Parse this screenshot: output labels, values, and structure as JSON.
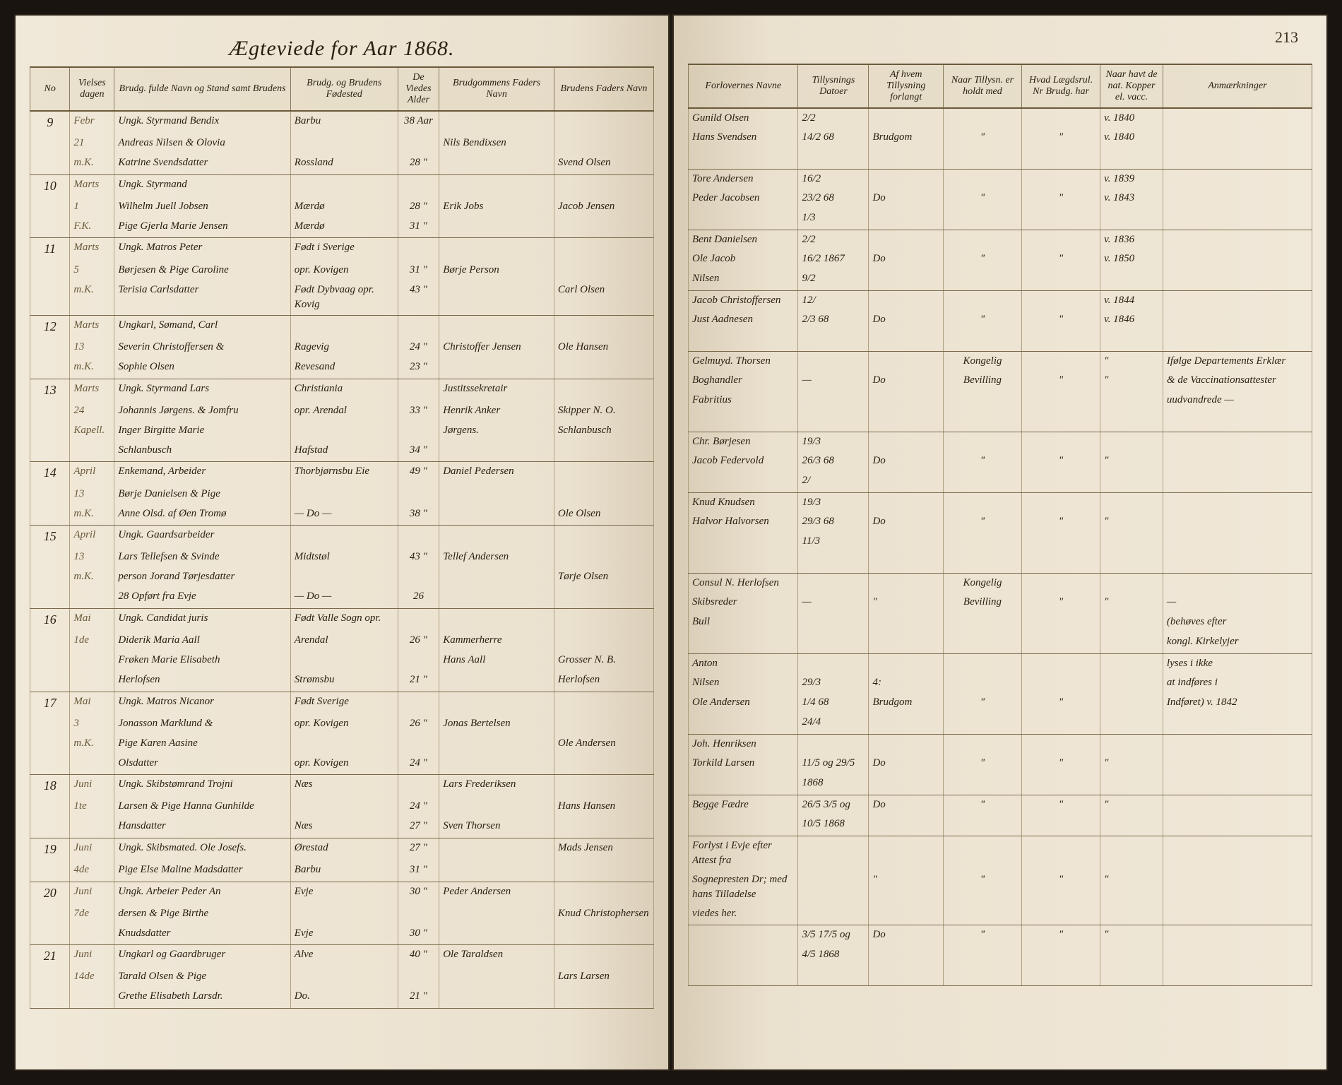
{
  "pageNumber": "213",
  "title": "Ægteviede for Aar 1868.",
  "headersLeft": [
    "No",
    "Vielses dagen",
    "Brudg. fulde Navn og Stand samt Brudens",
    "Brudg. og Brudens Fødested",
    "De Viedes Alder",
    "Brudgommens Faders Navn",
    "Brudens Faders Navn"
  ],
  "headersRight": [
    "Forlovernes Navne",
    "Tillysnings Datoer",
    "Af hvem Tillysning forlangt",
    "Naar Tillysn. er holdt med",
    "Hvad Lægdsrul. Nr Brudg. har",
    "Naar havt de nat. Kopper el. vacc.",
    "Anmærkninger"
  ],
  "entries": [
    {
      "no": "9",
      "month": "Febr",
      "day": "21",
      "sub": "m.K.",
      "lines": [
        {
          "names": "Ungk. Styrmand Bendix",
          "place": "Barbu",
          "age": "38 Aar",
          "f1": "",
          "f2": "",
          "wit": "Gunild Olsen",
          "d2": "2/2",
          "by": "",
          "n1": "",
          "n2": "",
          "yr": "v. 1840",
          "rem": ""
        },
        {
          "names": "Andreas Nilsen & Olovia",
          "place": "",
          "age": "",
          "f1": "Nils Bendixsen",
          "f2": "",
          "wit": "Hans Svendsen",
          "d2": "14/2 68",
          "by": "Brudgom",
          "n1": "\"",
          "n2": "\"",
          "yr": "v. 1840",
          "rem": ""
        },
        {
          "names": "Katrine Svendsdatter",
          "place": "Rossland",
          "age": "28 \"",
          "f1": "",
          "f2": "Svend Olsen",
          "wit": "",
          "d2": "",
          "by": "",
          "n1": "",
          "n2": "",
          "yr": "",
          "rem": ""
        }
      ]
    },
    {
      "no": "10",
      "month": "Marts",
      "day": "1",
      "sub": "F.K.",
      "lines": [
        {
          "names": "Ungk. Styrmand",
          "place": "",
          "age": "",
          "f1": "",
          "f2": "",
          "wit": "Tore Andersen",
          "d2": "16/2",
          "by": "",
          "n1": "",
          "n2": "",
          "yr": "v. 1839",
          "rem": ""
        },
        {
          "names": "Wilhelm Juell Jobsen",
          "place": "Mærdø",
          "age": "28 \"",
          "f1": "Erik Jobs",
          "f2": "Jacob Jensen",
          "wit": "Peder Jacobsen",
          "d2": "23/2 68",
          "by": "Do",
          "n1": "\"",
          "n2": "\"",
          "yr": "v. 1843",
          "rem": ""
        },
        {
          "names": "Pige Gjerla Marie Jensen",
          "place": "Mærdø",
          "age": "31 \"",
          "f1": "",
          "f2": "",
          "wit": "",
          "d2": "1/3",
          "by": "",
          "n1": "",
          "n2": "",
          "yr": "",
          "rem": ""
        }
      ]
    },
    {
      "no": "11",
      "month": "Marts",
      "day": "5",
      "sub": "m.K.",
      "lines": [
        {
          "names": "Ungk. Matros Peter",
          "place": "Født i Sverige",
          "age": "",
          "f1": "",
          "f2": "",
          "wit": "Bent Danielsen",
          "d2": "2/2",
          "by": "",
          "n1": "",
          "n2": "",
          "yr": "v. 1836",
          "rem": ""
        },
        {
          "names": "Børjesen & Pige Caroline",
          "place": "opr. Kovigen",
          "age": "31 \"",
          "f1": "Børje Person",
          "f2": "",
          "wit": "Ole Jacob",
          "d2": "16/2 1867",
          "by": "Do",
          "n1": "\"",
          "n2": "\"",
          "yr": "v. 1850",
          "rem": ""
        },
        {
          "names": "Terisia Carlsdatter",
          "place": "Født Dybvaag opr. Kovig",
          "age": "43 \"",
          "f1": "",
          "f2": "Carl Olsen",
          "wit": "Nilsen",
          "d2": "9/2",
          "by": "",
          "n1": "",
          "n2": "",
          "yr": "",
          "rem": ""
        }
      ]
    },
    {
      "no": "12",
      "month": "Marts",
      "day": "13",
      "sub": "m.K.",
      "lines": [
        {
          "names": "Ungkarl, Sømand, Carl",
          "place": "",
          "age": "",
          "f1": "",
          "f2": "",
          "wit": "Jacob Christoffersen",
          "d2": "12/",
          "by": "",
          "n1": "",
          "n2": "",
          "yr": "v. 1844",
          "rem": ""
        },
        {
          "names": "Severin Christoffersen &",
          "place": "Ragevig",
          "age": "24 \"",
          "f1": "Christoffer Jensen",
          "f2": "Ole Hansen",
          "wit": "Just Aadnesen",
          "d2": "2/3 68",
          "by": "Do",
          "n1": "\"",
          "n2": "\"",
          "yr": "v. 1846",
          "rem": ""
        },
        {
          "names": "Sophie Olsen",
          "place": "Revesand",
          "age": "23 \"",
          "f1": "",
          "f2": "",
          "wit": "",
          "d2": "",
          "by": "",
          "n1": "",
          "n2": "",
          "yr": "",
          "rem": ""
        }
      ]
    },
    {
      "no": "13",
      "month": "Marts",
      "day": "24",
      "sub": "Kapell.",
      "lines": [
        {
          "names": "Ungk. Styrmand Lars",
          "place": "Christiania",
          "age": "",
          "f1": "Justitssekretair",
          "f2": "",
          "wit": "Gelmuyd. Thorsen",
          "d2": "",
          "by": "",
          "n1": "Kongelig",
          "n2": "",
          "yr": "\"",
          "rem": "Ifølge Departements Erklær"
        },
        {
          "names": "Johannis Jørgens. & Jomfru",
          "place": "opr. Arendal",
          "age": "33 \"",
          "f1": "Henrik Anker",
          "f2": "Skipper N. O.",
          "wit": "Boghandler",
          "d2": "—",
          "by": "Do",
          "n1": "Bevilling",
          "n2": "\"",
          "yr": "\"",
          "rem": "& de Vaccinationsattester"
        },
        {
          "names": "Inger Birgitte Marie",
          "place": "",
          "age": "",
          "f1": "Jørgens.",
          "f2": "Schlanbusch",
          "wit": "Fabritius",
          "d2": "",
          "by": "",
          "n1": "",
          "n2": "",
          "yr": "",
          "rem": "uudvandrede —"
        },
        {
          "names": "Schlanbusch",
          "place": "Hafstad",
          "age": "34 \"",
          "f1": "",
          "f2": "",
          "wit": "",
          "d2": "",
          "by": "",
          "n1": "",
          "n2": "",
          "yr": "",
          "rem": ""
        }
      ]
    },
    {
      "no": "14",
      "month": "April",
      "day": "13",
      "sub": "m.K.",
      "lines": [
        {
          "names": "Enkemand, Arbeider",
          "place": "Thorbjørnsbu Eie",
          "age": "49 \"",
          "f1": "Daniel Pedersen",
          "f2": "",
          "wit": "Chr. Børjesen",
          "d2": "19/3",
          "by": "",
          "n1": "",
          "n2": "",
          "yr": "",
          "rem": ""
        },
        {
          "names": "Børje Danielsen & Pige",
          "place": "",
          "age": "",
          "f1": "",
          "f2": "",
          "wit": "Jacob Federvold",
          "d2": "26/3 68",
          "by": "Do",
          "n1": "\"",
          "n2": "\"",
          "yr": "\"",
          "rem": ""
        },
        {
          "names": "Anne Olsd. af Øen Tromø",
          "place": "— Do —",
          "age": "38 \"",
          "f1": "",
          "f2": "Ole Olsen",
          "wit": "",
          "d2": "2/",
          "by": "",
          "n1": "",
          "n2": "",
          "yr": "",
          "rem": ""
        }
      ]
    },
    {
      "no": "15",
      "month": "April",
      "day": "13",
      "sub": "m.K.",
      "lines": [
        {
          "names": "Ungk. Gaardsarbeider",
          "place": "",
          "age": "",
          "f1": "",
          "f2": "",
          "wit": "Knud Knudsen",
          "d2": "19/3",
          "by": "",
          "n1": "",
          "n2": "",
          "yr": "",
          "rem": ""
        },
        {
          "names": "Lars Tellefsen & Svinde",
          "place": "Midtstøl",
          "age": "43 \"",
          "f1": "Tellef Andersen",
          "f2": "",
          "wit": "Halvor Halvorsen",
          "d2": "29/3 68",
          "by": "Do",
          "n1": "\"",
          "n2": "\"",
          "yr": "\"",
          "rem": ""
        },
        {
          "names": "person Jorand Tørjesdatter",
          "place": "",
          "age": "",
          "f1": "",
          "f2": "Tørje Olsen",
          "wit": "",
          "d2": "11/3",
          "by": "",
          "n1": "",
          "n2": "",
          "yr": "",
          "rem": ""
        },
        {
          "names": "28 Opført fra Evje",
          "place": "— Do —",
          "age": "26",
          "f1": "",
          "f2": "",
          "wit": "",
          "d2": "",
          "by": "",
          "n1": "",
          "n2": "",
          "yr": "",
          "rem": ""
        }
      ]
    },
    {
      "no": "16",
      "month": "Mai",
      "day": "1de",
      "sub": "",
      "lines": [
        {
          "names": "Ungk. Candidat juris",
          "place": "Født Valle Sogn opr.",
          "age": "",
          "f1": "",
          "f2": "",
          "wit": "Consul N. Herlofsen",
          "d2": "",
          "by": "",
          "n1": "Kongelig",
          "n2": "",
          "yr": "",
          "rem": ""
        },
        {
          "names": "Diderik Maria Aall",
          "place": "Arendal",
          "age": "26 \"",
          "f1": "Kammerherre",
          "f2": "",
          "wit": "Skibsreder",
          "d2": "—",
          "by": "\"",
          "n1": "Bevilling",
          "n2": "\"",
          "yr": "\"",
          "rem": "—"
        },
        {
          "names": "Frøken Marie Elisabeth",
          "place": "",
          "age": "",
          "f1": "Hans Aall",
          "f2": "Grosser N. B.",
          "wit": "Bull",
          "d2": "",
          "by": "",
          "n1": "",
          "n2": "",
          "yr": "",
          "rem": "(behøves efter"
        },
        {
          "names": "Herlofsen",
          "place": "Strømsbu",
          "age": "21 \"",
          "f1": "",
          "f2": "Herlofsen",
          "wit": "",
          "d2": "",
          "by": "",
          "n1": "",
          "n2": "",
          "yr": "",
          "rem": "kongl. Kirkelyjer"
        }
      ]
    },
    {
      "no": "17",
      "month": "Mai",
      "day": "3",
      "sub": "m.K.",
      "lines": [
        {
          "names": "Ungk. Matros Nicanor",
          "place": "Født Sverige",
          "age": "",
          "f1": "",
          "f2": "",
          "wit": "Anton",
          "d2": "",
          "by": "",
          "n1": "",
          "n2": "",
          "yr": "",
          "rem": "lyses i ikke"
        },
        {
          "names": "Jonasson Marklund &",
          "place": "opr. Kovigen",
          "age": "26 \"",
          "f1": "Jonas Bertelsen",
          "f2": "",
          "wit": "Nilsen",
          "d2": "29/3",
          "by": "4:",
          "n1": "",
          "n2": "",
          "yr": "",
          "rem": "at indføres i"
        },
        {
          "names": "Pige Karen Aasine",
          "place": "",
          "age": "",
          "f1": "",
          "f2": "Ole Andersen",
          "wit": "Ole Andersen",
          "d2": "1/4 68",
          "by": "Brudgom",
          "n1": "\"",
          "n2": "\"",
          "yr": "",
          "rem": "Indføret) v. 1842"
        },
        {
          "names": "Olsdatter",
          "place": "opr. Kovigen",
          "age": "24 \"",
          "f1": "",
          "f2": "",
          "wit": "",
          "d2": "24/4",
          "by": "",
          "n1": "",
          "n2": "",
          "yr": "",
          "rem": ""
        }
      ]
    },
    {
      "no": "18",
      "month": "Juni",
      "day": "1te",
      "sub": "",
      "lines": [
        {
          "names": "Ungk. Skibstømrand Trojni",
          "place": "Næs",
          "age": "",
          "f1": "Lars Frederiksen",
          "f2": "",
          "wit": "Joh. Henriksen",
          "d2": "",
          "by": "",
          "n1": "",
          "n2": "",
          "yr": "",
          "rem": ""
        },
        {
          "names": "Larsen & Pige Hanna Gunhilde",
          "place": "",
          "age": "24 \"",
          "f1": "",
          "f2": "Hans Hansen",
          "wit": "Torkild Larsen",
          "d2": "11/5 og 29/5",
          "by": "Do",
          "n1": "\"",
          "n2": "\"",
          "yr": "\"",
          "rem": ""
        },
        {
          "names": "Hansdatter",
          "place": "Næs",
          "age": "27 \"",
          "f1": "Sven Thorsen",
          "f2": "",
          "wit": "",
          "d2": "1868",
          "by": "",
          "n1": "",
          "n2": "",
          "yr": "",
          "rem": ""
        }
      ]
    },
    {
      "no": "19",
      "month": "Juni",
      "day": "4de",
      "sub": "",
      "lines": [
        {
          "names": "Ungk. Skibsmated. Ole Josefs.",
          "place": "Ørestad",
          "age": "27 \"",
          "f1": "",
          "f2": "Mads Jensen",
          "wit": "Begge Fædre",
          "d2": "26/5 3/5 og",
          "by": "Do",
          "n1": "\"",
          "n2": "\"",
          "yr": "\"",
          "rem": ""
        },
        {
          "names": "Pige Else Maline Madsdatter",
          "place": "Barbu",
          "age": "31 \"",
          "f1": "",
          "f2": "",
          "wit": "",
          "d2": "10/5 1868",
          "by": "",
          "n1": "",
          "n2": "",
          "yr": "",
          "rem": ""
        }
      ]
    },
    {
      "no": "20",
      "month": "Juni",
      "day": "7de",
      "sub": "",
      "lines": [
        {
          "names": "Ungk. Arbeier Peder An",
          "place": "Evje",
          "age": "30 \"",
          "f1": "Peder Andersen",
          "f2": "",
          "wit": "Forlyst i Evje efter Attest fra",
          "d2": "",
          "by": "",
          "n1": "",
          "n2": "",
          "yr": "",
          "rem": ""
        },
        {
          "names": "dersen & Pige Birthe",
          "place": "",
          "age": "",
          "f1": "",
          "f2": "Knud Christophersen",
          "wit": "Sognepresten Dr; med hans Tilladelse",
          "d2": "",
          "by": "\"",
          "n1": "\"",
          "n2": "\"",
          "yr": "\"",
          "rem": ""
        },
        {
          "names": "Knudsdatter",
          "place": "Evje",
          "age": "30 \"",
          "f1": "",
          "f2": "",
          "wit": "viedes her.",
          "d2": "",
          "by": "",
          "n1": "",
          "n2": "",
          "yr": "",
          "rem": ""
        }
      ]
    },
    {
      "no": "21",
      "month": "Juni",
      "day": "14de",
      "sub": "",
      "lines": [
        {
          "names": "Ungkarl og Gaardbruger",
          "place": "Alve",
          "age": "40 \"",
          "f1": "Ole Taraldsen",
          "f2": "",
          "wit": "",
          "d2": "3/5 17/5 og",
          "by": "Do",
          "n1": "\"",
          "n2": "\"",
          "yr": "\"",
          "rem": ""
        },
        {
          "names": "Tarald Olsen & Pige",
          "place": "",
          "age": "",
          "f1": "",
          "f2": "Lars Larsen",
          "wit": "",
          "d2": "4/5 1868",
          "by": "",
          "n1": "",
          "n2": "",
          "yr": "",
          "rem": ""
        },
        {
          "names": "Grethe Elisabeth Larsdr.",
          "place": "Do.",
          "age": "21 \"",
          "f1": "",
          "f2": "",
          "wit": "",
          "d2": "",
          "by": "",
          "n1": "",
          "n2": "",
          "yr": "",
          "rem": ""
        }
      ]
    }
  ]
}
